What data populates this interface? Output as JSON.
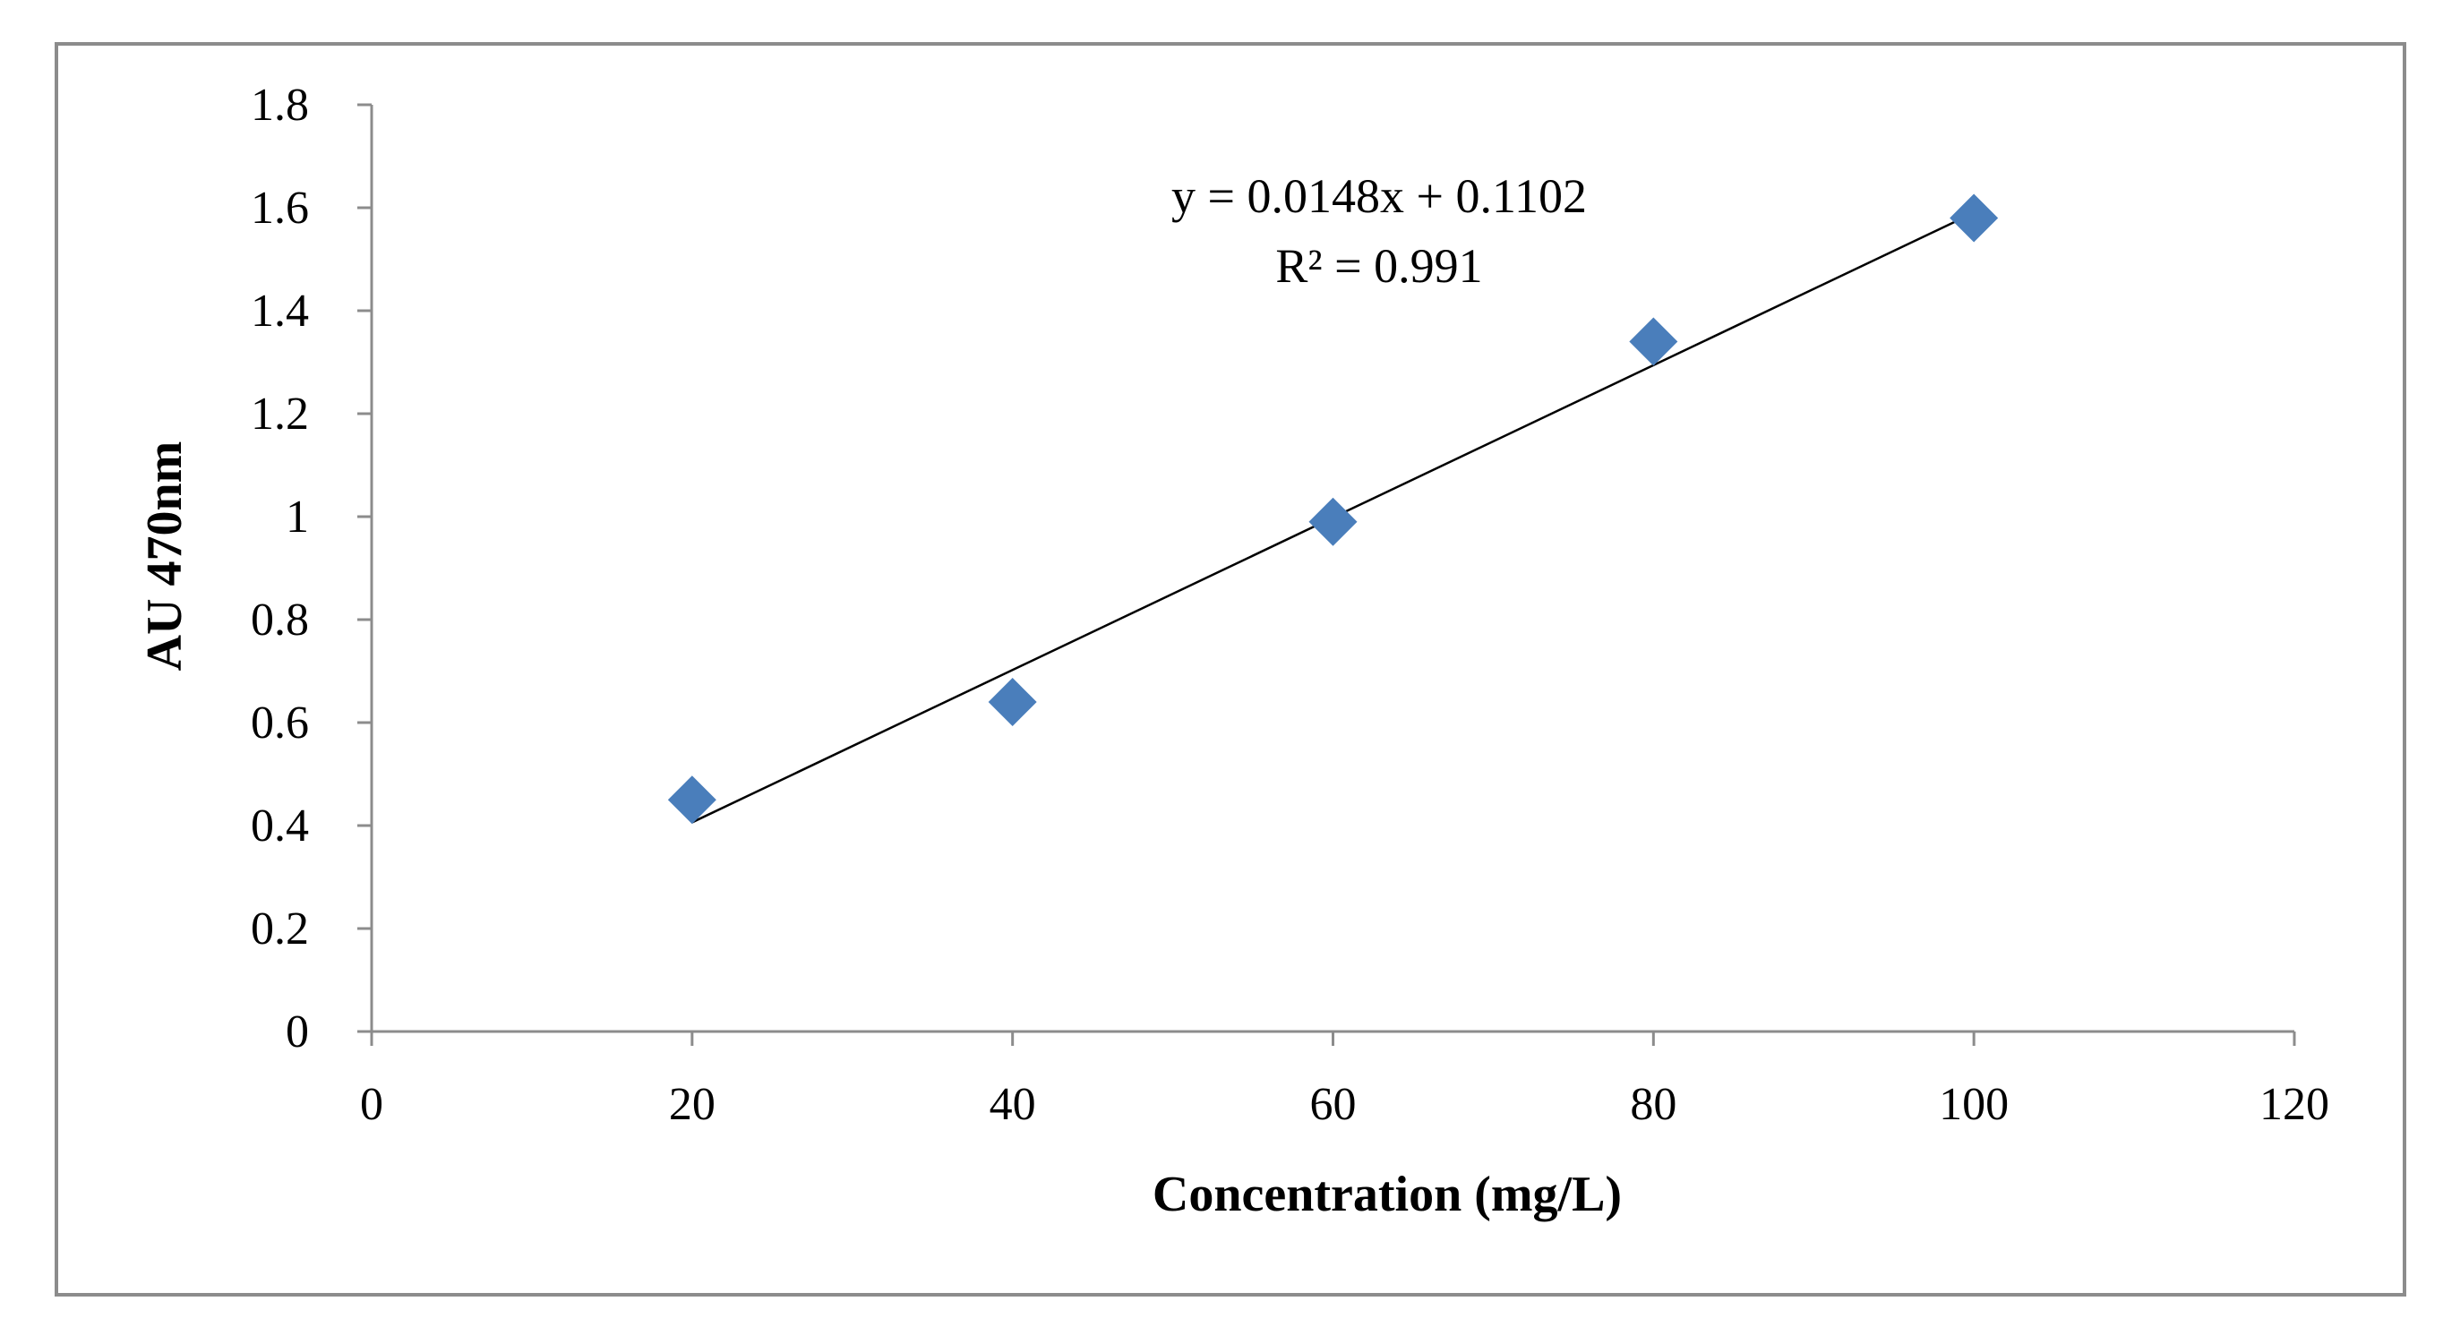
{
  "chart_data": {
    "type": "scatter",
    "xlabel": "Concentration (mg/L)",
    "ylabel": "AU 470nm",
    "xlim": [
      0,
      120
    ],
    "ylim": [
      0,
      1.8
    ],
    "x_ticks": [
      "0",
      "20",
      "40",
      "60",
      "80",
      "100",
      "120"
    ],
    "y_ticks": [
      "0",
      "0.2",
      "0.4",
      "0.6",
      "0.8",
      "1",
      "1.2",
      "1.4",
      "1.6",
      "1.8"
    ],
    "grid": false,
    "marker": "diamond",
    "marker_color": "#4a7ebb",
    "series": [
      {
        "x": [
          20,
          40,
          60,
          80,
          100
        ],
        "y": [
          0.45,
          0.64,
          0.99,
          1.34,
          1.58
        ]
      }
    ],
    "trendline": {
      "slope": 0.0148,
      "intercept": 0.1102,
      "x_range": [
        20,
        100
      ],
      "color": "#000000"
    },
    "annotations": {
      "equation": "y = 0.0148x + 0.1102",
      "r_squared": "R² = 0.991"
    }
  }
}
